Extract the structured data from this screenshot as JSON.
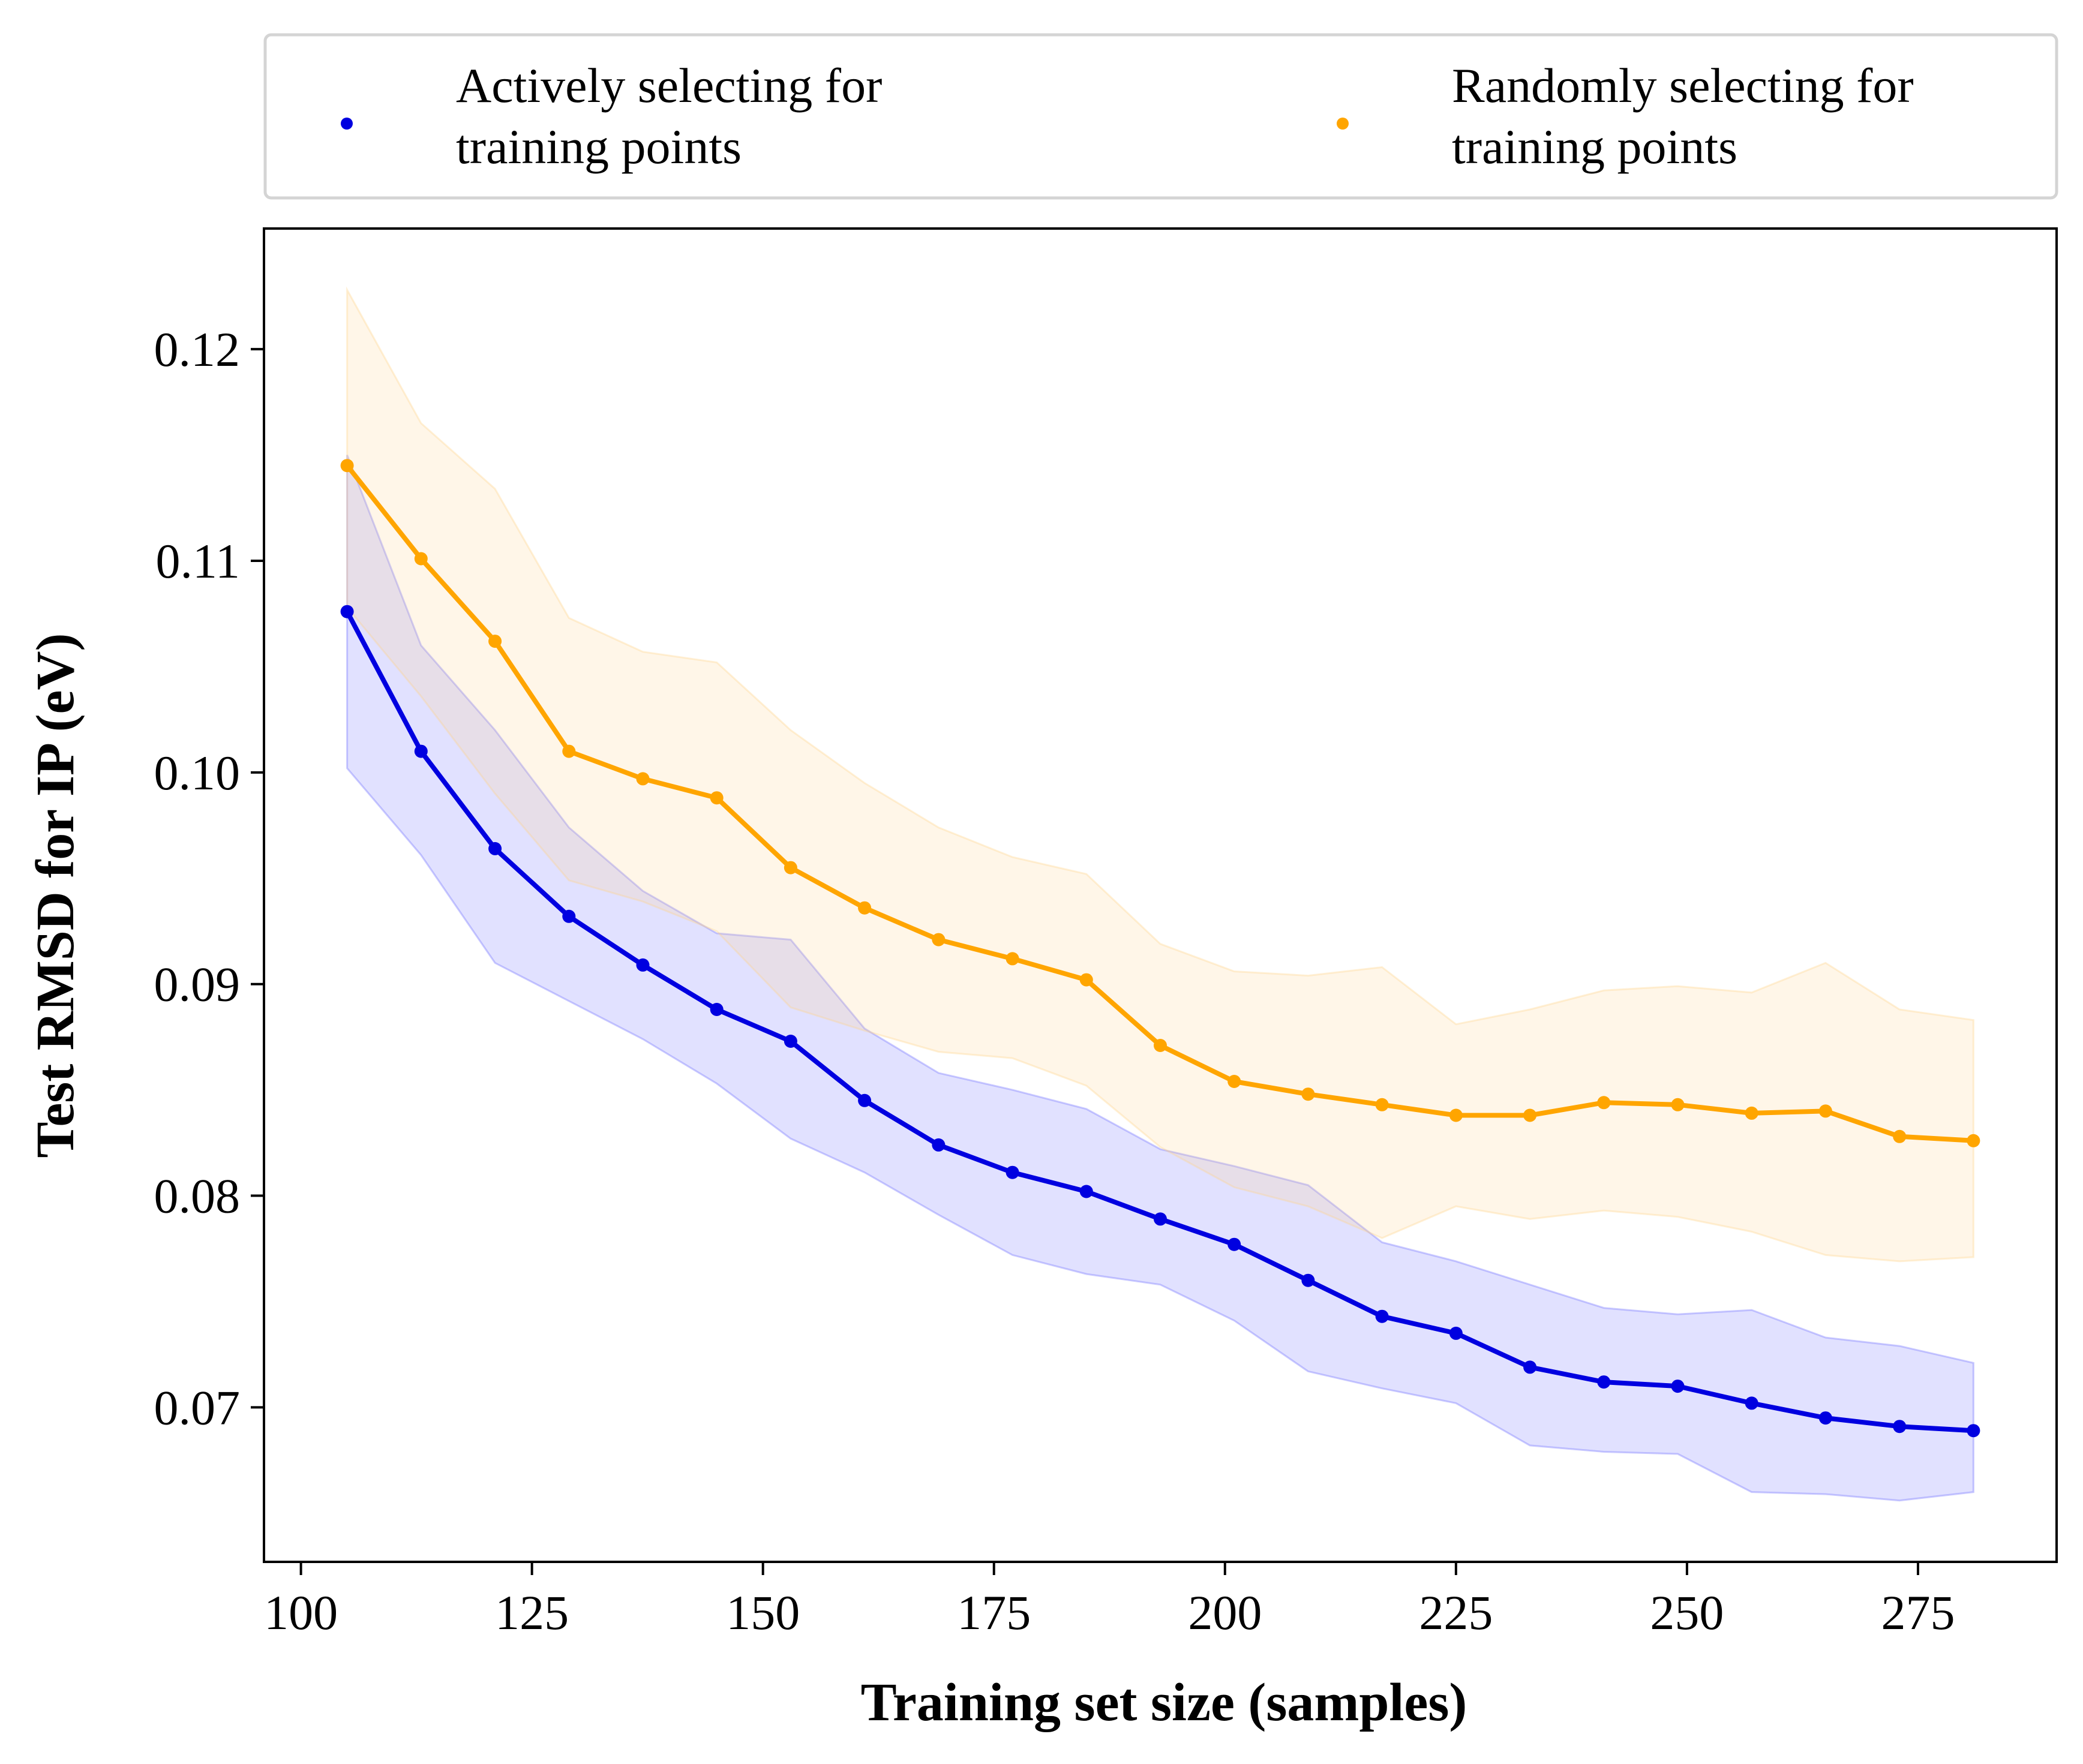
{
  "chart_data": {
    "type": "line",
    "title": "",
    "xlabel": "Training set size (samples)",
    "ylabel": "Test RMSD for IP (eV)",
    "xlim": [
      96,
      290
    ],
    "ylim": [
      0.0627,
      0.1257
    ],
    "xticks": [
      "100",
      "125",
      "150",
      "175",
      "200",
      "225",
      "250",
      "275"
    ],
    "yticks": [
      "0.07",
      "0.08",
      "0.09",
      "0.10",
      "0.11",
      "0.12"
    ],
    "grid": false,
    "legend_position": "top, outside plot",
    "x": [
      105,
      113,
      121,
      129,
      137,
      145,
      153,
      161,
      169,
      177,
      185,
      193,
      201,
      209,
      217,
      225,
      233,
      241,
      249,
      257,
      265,
      273,
      281
    ],
    "series": [
      {
        "name_lines": [
          "Actively selecting for",
          "training points"
        ],
        "color": "#0000e0",
        "band_color": "#6b6bff",
        "values": [
          0.1076,
          0.101,
          0.0964,
          0.0932,
          0.0909,
          0.0888,
          0.0873,
          0.0845,
          0.0824,
          0.0811,
          0.0802,
          0.0789,
          0.0777,
          0.076,
          0.0743,
          0.0735,
          0.0719,
          0.0712,
          0.071,
          0.0702,
          0.0695,
          0.0691,
          0.0689
        ],
        "upper": [
          0.115,
          0.106,
          0.102,
          0.0974,
          0.0944,
          0.0924,
          0.0921,
          0.0879,
          0.0858,
          0.085,
          0.0841,
          0.0822,
          0.0814,
          0.0805,
          0.0778,
          0.0769,
          0.0758,
          0.0747,
          0.0744,
          0.0746,
          0.0733,
          0.0729,
          0.0721
        ],
        "lower": [
          0.1002,
          0.0961,
          0.091,
          0.0892,
          0.0874,
          0.0853,
          0.0827,
          0.0811,
          0.0791,
          0.0772,
          0.0763,
          0.0758,
          0.0741,
          0.0717,
          0.0709,
          0.0702,
          0.0682,
          0.0679,
          0.0678,
          0.066,
          0.0659,
          0.0656,
          0.066
        ]
      },
      {
        "name_lines": [
          "Randomly selecting for",
          "training points"
        ],
        "color": "#ffa500",
        "band_color": "#ffd48a",
        "values": [
          0.1145,
          0.1101,
          0.1062,
          0.101,
          0.0997,
          0.0988,
          0.0955,
          0.0936,
          0.0921,
          0.0912,
          0.0902,
          0.0871,
          0.0854,
          0.0848,
          0.0843,
          0.0838,
          0.0838,
          0.0844,
          0.0843,
          0.0839,
          0.084,
          0.0828,
          0.0826
        ],
        "upper": [
          0.1228,
          0.1165,
          0.1134,
          0.1073,
          0.1057,
          0.1052,
          0.102,
          0.0995,
          0.0974,
          0.096,
          0.0952,
          0.0919,
          0.0906,
          0.0904,
          0.0908,
          0.0881,
          0.0888,
          0.0897,
          0.0899,
          0.0896,
          0.091,
          0.0888,
          0.0883
        ],
        "lower": [
          0.1078,
          0.1036,
          0.099,
          0.0949,
          0.0939,
          0.0925,
          0.0889,
          0.0878,
          0.0868,
          0.0865,
          0.0852,
          0.0823,
          0.0804,
          0.0795,
          0.078,
          0.0795,
          0.0789,
          0.0793,
          0.079,
          0.0783,
          0.0772,
          0.0769,
          0.0771
        ]
      }
    ]
  }
}
